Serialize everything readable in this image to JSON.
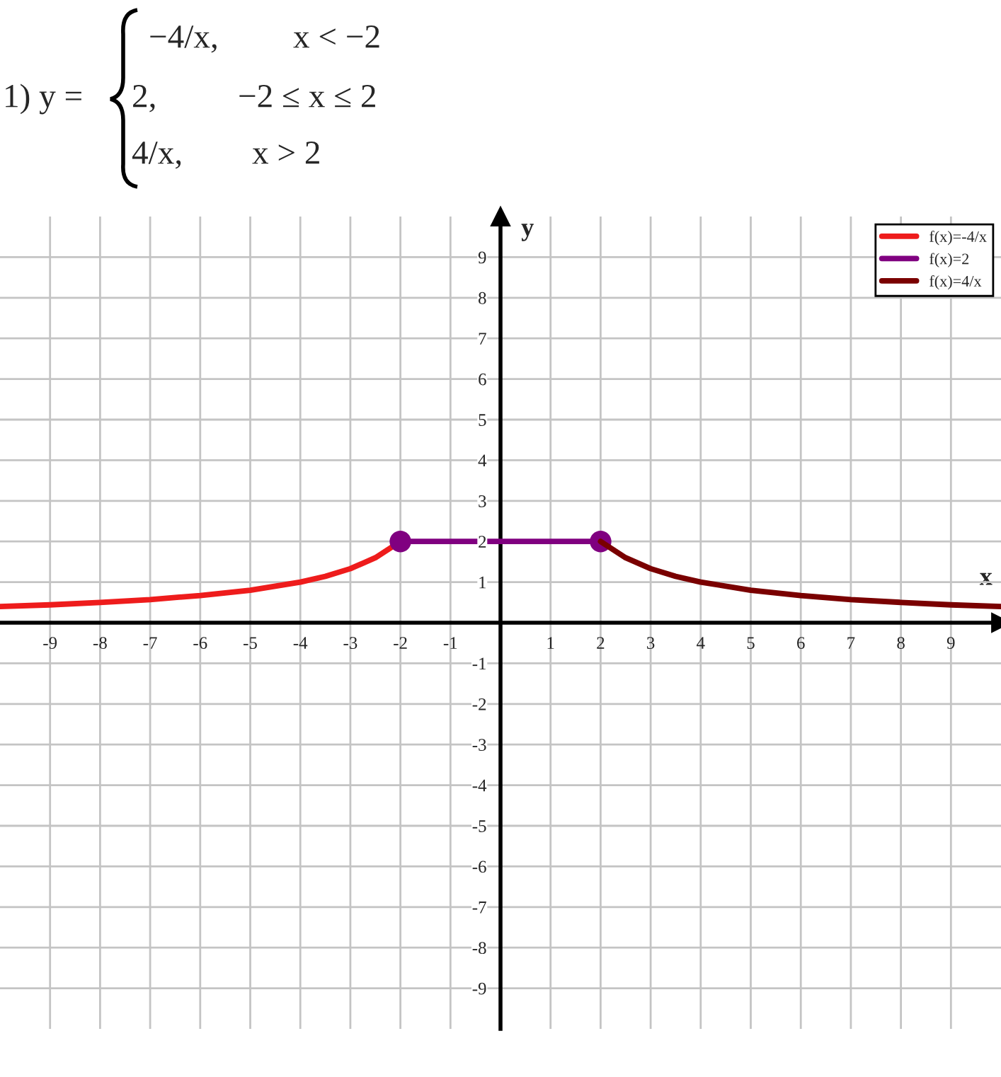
{
  "chart_data": {
    "type": "line",
    "title": "1) y =",
    "annotations": [
      "−4/x,",
      "x < −2",
      "2,",
      "−2 ≤ x ≤ 2",
      "4/x,",
      "x > 2"
    ],
    "xlabel": "x",
    "ylabel": "y",
    "xlim": [
      -10,
      10
    ],
    "ylim": [
      -10,
      10
    ],
    "xticks": [
      -9,
      -8,
      -7,
      -6,
      -5,
      -4,
      -3,
      -2,
      -1,
      1,
      2,
      3,
      4,
      5,
      6,
      7,
      8,
      9
    ],
    "yticks": [
      -9,
      -8,
      -7,
      -6,
      -5,
      -4,
      -3,
      -2,
      -1,
      1,
      2,
      3,
      4,
      5,
      6,
      7,
      8,
      9
    ],
    "grid": true,
    "legend": "top right",
    "line_style": "solid",
    "series": [
      {
        "name": "f(x)=-4/x",
        "color": "#ee1c1c",
        "x": [
          -10,
          -9,
          -8,
          -7,
          -6,
          -5,
          -4,
          -3.5,
          -3,
          -2.5,
          -2
        ],
        "values": [
          0.4,
          0.44,
          0.5,
          0.57,
          0.67,
          0.8,
          1,
          1.14,
          1.33,
          1.6,
          2
        ]
      },
      {
        "name": "f(x)=2",
        "color": "#800080",
        "marker": "circle",
        "x": [
          -2,
          2
        ],
        "values": [
          2,
          2
        ]
      },
      {
        "name": "f(x)=4/x",
        "color": "#7a0000",
        "x": [
          2,
          2.5,
          3,
          3.5,
          4,
          5,
          6,
          7,
          8,
          9,
          10
        ],
        "values": [
          2,
          1.6,
          1.33,
          1.14,
          1,
          0.8,
          0.67,
          0.57,
          0.5,
          0.44,
          0.4
        ]
      }
    ]
  }
}
